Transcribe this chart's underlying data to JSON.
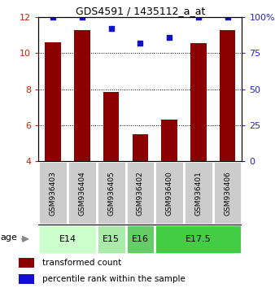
{
  "title": "GDS4591 / 1435112_a_at",
  "samples": [
    "GSM936403",
    "GSM936404",
    "GSM936405",
    "GSM936402",
    "GSM936400",
    "GSM936401",
    "GSM936406"
  ],
  "bar_values": [
    10.6,
    11.3,
    7.85,
    5.5,
    6.3,
    10.55,
    11.3
  ],
  "percentile_values": [
    100,
    100,
    92,
    82,
    86,
    100,
    100
  ],
  "ylim_left": [
    4,
    12
  ],
  "ylim_right": [
    0,
    100
  ],
  "yticks_left": [
    4,
    6,
    8,
    10,
    12
  ],
  "yticks_right": [
    0,
    25,
    50,
    75,
    100
  ],
  "ytick_right_labels": [
    "0",
    "25",
    "50",
    "75",
    "100%"
  ],
  "bar_color": "#8B0000",
  "dot_color": "#1111CC",
  "grid_color": "#555555",
  "age_groups": [
    {
      "label": "E14",
      "span": [
        0,
        1
      ],
      "color": "#ccffcc"
    },
    {
      "label": "E15",
      "span": [
        2,
        2
      ],
      "color": "#99ee99"
    },
    {
      "label": "E16",
      "span": [
        3,
        3
      ],
      "color": "#66dd66"
    },
    {
      "label": "E17.5",
      "span": [
        4,
        6
      ],
      "color": "#44cc44"
    }
  ],
  "sample_box_color": "#cccccc",
  "sample_box_edge": "#888888",
  "legend_bar_label": "transformed count",
  "legend_dot_label": "percentile rank within the sample",
  "left_tick_color": "#CC2200",
  "right_tick_color": "#2222CC",
  "bar_width": 0.55
}
